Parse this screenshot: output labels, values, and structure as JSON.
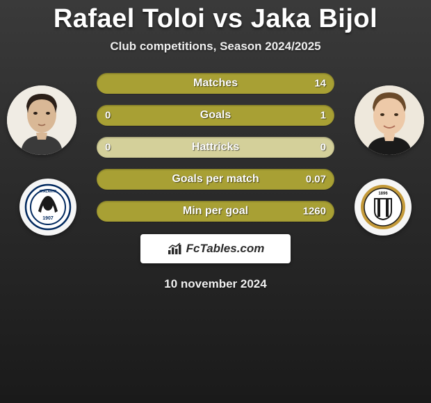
{
  "header": {
    "title": "Rafael Toloi vs Jaka Bijol",
    "subtitle": "Club competitions, Season 2024/2025"
  },
  "colors": {
    "pill_primary": "#a8a034",
    "pill_empty": "#d4d09a",
    "text": "#ffffff"
  },
  "players": {
    "left": {
      "name": "Rafael Toloi"
    },
    "right": {
      "name": "Jaka Bijol"
    }
  },
  "clubs": {
    "left": {
      "name": "Atalanta"
    },
    "right": {
      "name": "Udinese"
    }
  },
  "stats": [
    {
      "label": "Matches",
      "left_value": "",
      "right_value": "14",
      "left_pct": 0,
      "right_pct": 100
    },
    {
      "label": "Goals",
      "left_value": "0",
      "right_value": "1",
      "left_pct": 0,
      "right_pct": 100
    },
    {
      "label": "Hattricks",
      "left_value": "0",
      "right_value": "0",
      "left_pct": 0,
      "right_pct": 0
    },
    {
      "label": "Goals per match",
      "left_value": "",
      "right_value": "0.07",
      "left_pct": 0,
      "right_pct": 100
    },
    {
      "label": "Min per goal",
      "left_value": "",
      "right_value": "1260",
      "left_pct": 0,
      "right_pct": 100
    }
  ],
  "branding": {
    "text": "FcTables.com"
  },
  "date": "10 november 2024"
}
